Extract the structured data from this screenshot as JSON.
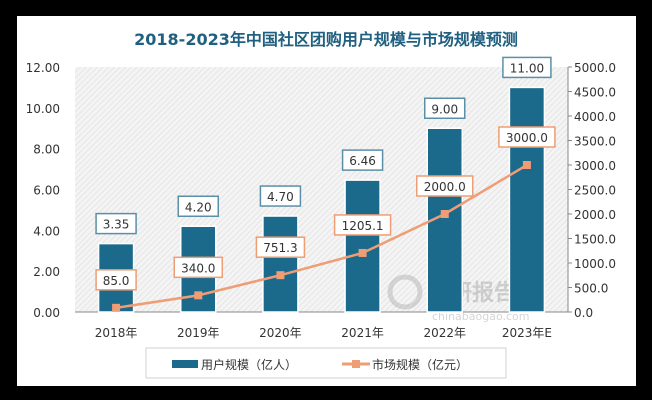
{
  "chart_data": {
    "type": "bar+line",
    "title": "2018-2023年中国社区团购用户规模与市场规模预测",
    "categories": [
      "2018年",
      "2019年",
      "2020年",
      "2021年",
      "2022年",
      "2023年E"
    ],
    "series": [
      {
        "name": "用户规模（亿人）",
        "type": "bar",
        "axis": "left",
        "values": [
          3.35,
          4.2,
          4.7,
          6.46,
          9.0,
          11.0
        ],
        "labels": [
          "3.35",
          "4.20",
          "4.70",
          "6.46",
          "9.00",
          "11.00"
        ],
        "color": "#1b6a8c"
      },
      {
        "name": "市场规模（亿元）",
        "type": "line",
        "axis": "right",
        "values": [
          85.0,
          340.0,
          751.3,
          1205.1,
          2000.0,
          3000.0
        ],
        "labels": [
          "85.0",
          "340.0",
          "751.3",
          "1205.1",
          "2000.0",
          "3000.0"
        ],
        "color": "#ee9d74"
      }
    ],
    "left_axis": {
      "ylim": [
        0,
        12
      ],
      "ticks": [
        "0.00",
        "2.00",
        "4.00",
        "6.00",
        "8.00",
        "10.00",
        "12.00"
      ]
    },
    "right_axis": {
      "ylim": [
        0,
        5000
      ],
      "ticks": [
        "0.0",
        "500.0",
        "1000.0",
        "1500.0",
        "2000.0",
        "2500.0",
        "3000.0",
        "3500.0",
        "4000.0",
        "4500.0",
        "5000.0"
      ]
    },
    "legend_position": "bottom",
    "grid": false,
    "title_color": "#1f5f80"
  },
  "watermark": {
    "text": "观研报告网",
    "url_text": "chinabaogao.com"
  }
}
